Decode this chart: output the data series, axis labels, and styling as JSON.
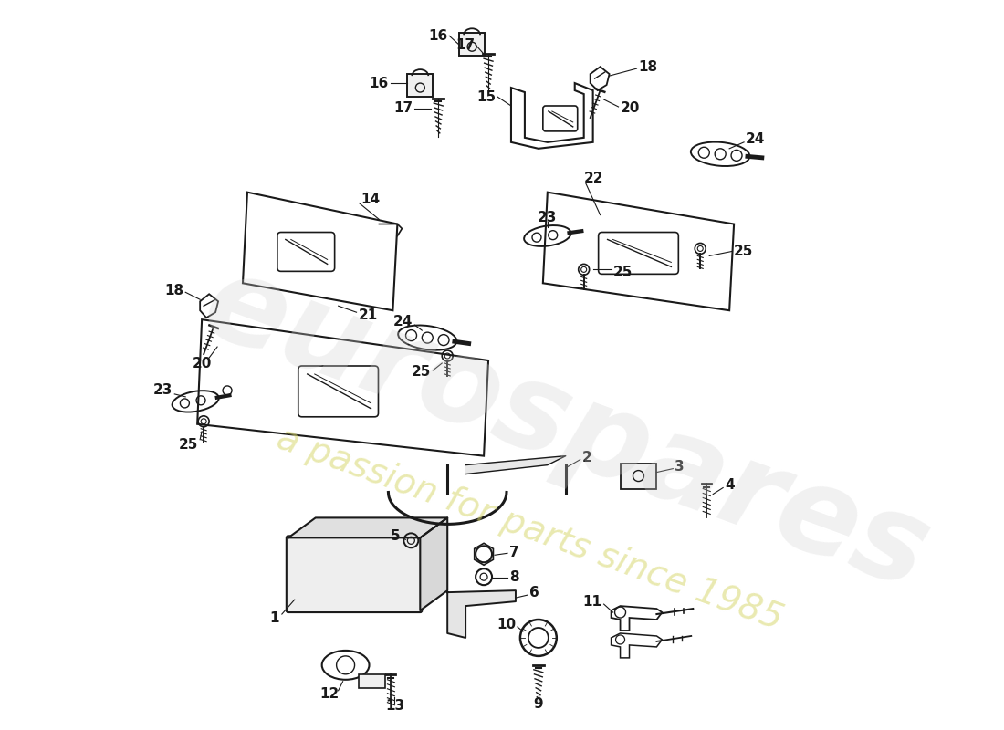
{
  "background_color": "#ffffff",
  "watermark_text1": "eurospares",
  "watermark_text2": "a passion for parts since 1985",
  "line_color": "#1a1a1a",
  "watermark_color1": "#d0d0d0",
  "watermark_color2": "#d8d870"
}
